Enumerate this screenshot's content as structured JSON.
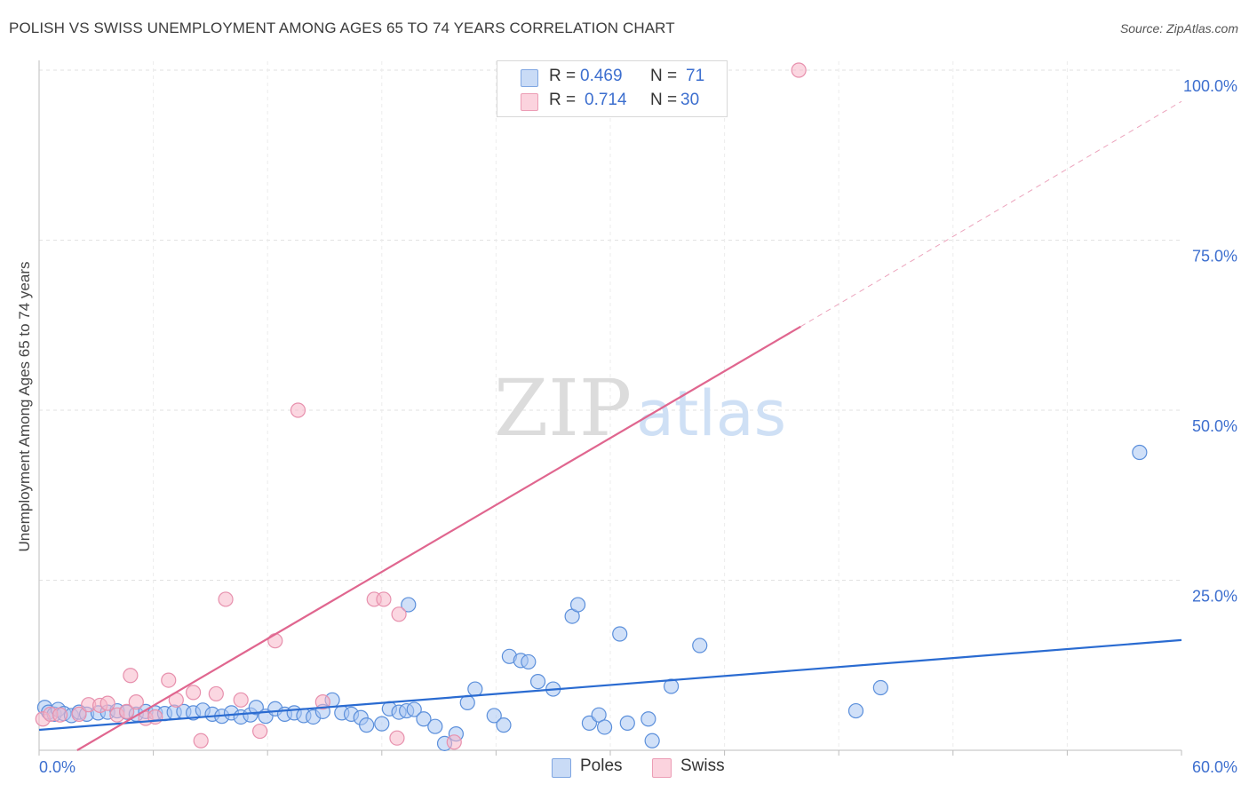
{
  "title": "POLISH VS SWISS UNEMPLOYMENT AMONG AGES 65 TO 74 YEARS CORRELATION CHART",
  "source": "Source: ZipAtlas.com",
  "watermark": {
    "zip": "ZIP",
    "atlas": "atlas"
  },
  "legend": {
    "rows": [
      {
        "r_label": "R = ",
        "r_value": "0.469",
        "n_label": "N = ",
        "n_value": "71",
        "color": "#aac7f2"
      },
      {
        "r_label": "R = ",
        "r_value": "0.714",
        "n_label": "N = ",
        "n_value": "30",
        "color": "#f7b6c9"
      }
    ]
  },
  "bottom_legend": [
    {
      "label": "Poles",
      "color": "#aac7f2"
    },
    {
      "label": "Swiss",
      "color": "#f7b6c9"
    }
  ],
  "chart_data": {
    "type": "scatter",
    "title": "POLISH VS SWISS UNEMPLOYMENT AMONG AGES 65 TO 74 YEARS CORRELATION CHART",
    "xlabel": "",
    "ylabel": "Unemployment Among Ages 65 to 74 years",
    "xlim": [
      0,
      60
    ],
    "ylim": [
      0,
      100
    ],
    "x_tick_labels": [
      "0.0%",
      "60.0%"
    ],
    "y_tick_values": [
      25,
      50,
      75,
      100
    ],
    "y_tick_labels": [
      "25.0%",
      "50.0%",
      "75.0%",
      "100.0%"
    ],
    "grid": true,
    "series": [
      {
        "name": "Poles",
        "color": "#5b8fdb",
        "fill": "#aac7f2",
        "trend": {
          "x0": 0,
          "y0": 3.0,
          "x1": 60,
          "y1": 16.2,
          "color": "#2a6bd1"
        },
        "points": [
          [
            0.3,
            6.3
          ],
          [
            0.5,
            5.6
          ],
          [
            0.8,
            5.3
          ],
          [
            1.0,
            6.0
          ],
          [
            1.3,
            5.4
          ],
          [
            1.7,
            5.1
          ],
          [
            2.1,
            5.6
          ],
          [
            2.5,
            5.3
          ],
          [
            3.1,
            5.5
          ],
          [
            3.6,
            5.6
          ],
          [
            4.1,
            5.8
          ],
          [
            4.6,
            5.6
          ],
          [
            5.1,
            5.3
          ],
          [
            5.6,
            5.7
          ],
          [
            6.1,
            5.5
          ],
          [
            6.6,
            5.4
          ],
          [
            7.1,
            5.6
          ],
          [
            7.6,
            5.7
          ],
          [
            8.1,
            5.5
          ],
          [
            8.6,
            5.9
          ],
          [
            9.1,
            5.3
          ],
          [
            9.6,
            5.0
          ],
          [
            10.1,
            5.5
          ],
          [
            10.6,
            4.9
          ],
          [
            11.1,
            5.2
          ],
          [
            11.4,
            6.3
          ],
          [
            11.9,
            5.0
          ],
          [
            12.4,
            6.1
          ],
          [
            12.9,
            5.3
          ],
          [
            13.4,
            5.5
          ],
          [
            13.9,
            5.1
          ],
          [
            14.4,
            4.9
          ],
          [
            14.9,
            5.7
          ],
          [
            15.4,
            7.4
          ],
          [
            15.9,
            5.5
          ],
          [
            16.4,
            5.3
          ],
          [
            16.9,
            4.8
          ],
          [
            17.2,
            3.7
          ],
          [
            18.0,
            3.9
          ],
          [
            18.4,
            6.1
          ],
          [
            18.9,
            5.6
          ],
          [
            19.3,
            5.8
          ],
          [
            19.7,
            6.0
          ],
          [
            20.2,
            4.6
          ],
          [
            20.8,
            3.5
          ],
          [
            21.3,
            1.0
          ],
          [
            21.9,
            2.4
          ],
          [
            22.5,
            7.0
          ],
          [
            22.9,
            9.0
          ],
          [
            23.9,
            5.1
          ],
          [
            24.4,
            3.7
          ],
          [
            24.7,
            13.8
          ],
          [
            25.3,
            13.2
          ],
          [
            25.7,
            13.0
          ],
          [
            26.2,
            10.1
          ],
          [
            27.0,
            9.0
          ],
          [
            28.0,
            19.7
          ],
          [
            28.9,
            4.0
          ],
          [
            29.4,
            5.2
          ],
          [
            29.7,
            3.4
          ],
          [
            30.5,
            17.1
          ],
          [
            30.9,
            4.0
          ],
          [
            32.0,
            4.6
          ],
          [
            32.2,
            1.4
          ],
          [
            33.2,
            9.4
          ],
          [
            34.7,
            15.4
          ],
          [
            42.9,
            5.8
          ],
          [
            44.2,
            9.2
          ],
          [
            57.8,
            43.8
          ],
          [
            19.4,
            21.4
          ],
          [
            28.3,
            21.4
          ]
        ]
      },
      {
        "name": "Swiss",
        "color": "#e790ad",
        "fill": "#f7b6c9",
        "trend": {
          "x0": 2.0,
          "y0": 0.0,
          "x1": 40.0,
          "y1": 62.3,
          "color": "#e0668f"
        },
        "trend_extension": {
          "x0": 40.0,
          "y0": 62.3,
          "x1": 60.0,
          "y1": 95.4
        },
        "points": [
          [
            0.2,
            4.6
          ],
          [
            0.6,
            5.3
          ],
          [
            1.1,
            5.2
          ],
          [
            2.1,
            5.3
          ],
          [
            2.6,
            6.7
          ],
          [
            3.2,
            6.6
          ],
          [
            3.6,
            6.9
          ],
          [
            4.1,
            5.2
          ],
          [
            4.6,
            5.7
          ],
          [
            4.8,
            11.0
          ],
          [
            5.1,
            7.1
          ],
          [
            5.6,
            4.7
          ],
          [
            6.1,
            4.9
          ],
          [
            6.8,
            10.3
          ],
          [
            7.2,
            7.4
          ],
          [
            8.1,
            8.5
          ],
          [
            8.5,
            1.4
          ],
          [
            9.3,
            8.3
          ],
          [
            9.8,
            22.2
          ],
          [
            10.6,
            7.4
          ],
          [
            11.6,
            2.8
          ],
          [
            12.4,
            16.1
          ],
          [
            13.6,
            50.0
          ],
          [
            14.9,
            7.1
          ],
          [
            17.6,
            22.2
          ],
          [
            18.1,
            22.2
          ],
          [
            18.8,
            1.8
          ],
          [
            18.9,
            20.0
          ],
          [
            21.8,
            1.2
          ],
          [
            39.9,
            100.0
          ]
        ]
      }
    ]
  }
}
